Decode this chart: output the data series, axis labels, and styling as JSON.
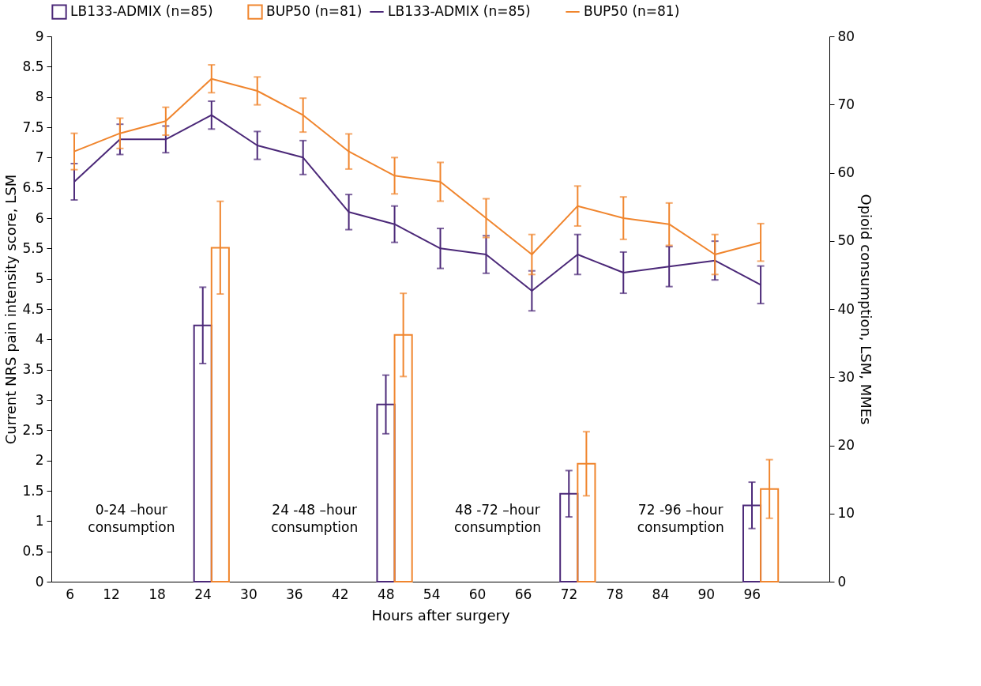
{
  "chart_data": {
    "type": "line",
    "categories": [
      "6",
      "12",
      "18",
      "24",
      "30",
      "36",
      "42",
      "48",
      "54",
      "60",
      "66",
      "72",
      "78",
      "84",
      "90",
      "96",
      null
    ],
    "series": [
      {
        "name": "LB133-ADMIX (n=85)",
        "type": "bar",
        "axis": "y2",
        "color": "#4b2878",
        "values": [
          null,
          null,
          null,
          37.6,
          null,
          null,
          null,
          26.0,
          null,
          null,
          null,
          12.9,
          null,
          null,
          null,
          11.2,
          null
        ],
        "errors": [
          null,
          null,
          null,
          5.6,
          null,
          null,
          null,
          4.3,
          null,
          null,
          null,
          3.4,
          null,
          null,
          null,
          3.4,
          null
        ]
      },
      {
        "name": "BUP50 (n=81)",
        "type": "bar",
        "axis": "y2",
        "color": "#f0852d",
        "values": [
          null,
          null,
          null,
          49.0,
          null,
          null,
          null,
          36.2,
          null,
          null,
          null,
          17.3,
          null,
          null,
          null,
          13.6,
          null
        ],
        "errors": [
          null,
          null,
          null,
          6.8,
          null,
          null,
          null,
          6.1,
          null,
          null,
          null,
          4.7,
          null,
          null,
          null,
          4.3,
          null
        ]
      },
      {
        "name": "LB133-ADMIX (n=85)",
        "color": "#4b2878",
        "values": [
          6.6,
          7.3,
          7.3,
          7.7,
          7.2,
          7.0,
          6.1,
          5.9,
          5.5,
          5.4,
          4.8,
          5.4,
          5.1,
          5.2,
          5.3,
          4.9,
          null
        ],
        "errors": [
          0.3,
          0.25,
          0.22,
          0.23,
          0.23,
          0.28,
          0.29,
          0.3,
          0.33,
          0.31,
          0.33,
          0.33,
          0.34,
          0.33,
          0.32,
          0.31,
          null
        ]
      },
      {
        "name": "BUP50 (n=81)",
        "color": "#f0852d",
        "values": [
          7.1,
          7.4,
          7.6,
          8.3,
          8.1,
          7.7,
          7.1,
          6.7,
          6.6,
          6.0,
          5.4,
          6.2,
          6.0,
          5.9,
          5.4,
          5.6,
          null
        ],
        "errors": [
          0.3,
          0.25,
          0.23,
          0.23,
          0.23,
          0.28,
          0.29,
          0.3,
          0.32,
          0.32,
          0.33,
          0.33,
          0.35,
          0.35,
          0.33,
          0.31,
          null
        ]
      }
    ],
    "xlabel": "Hours after surgery",
    "ylabel": "Current NRS pain intensity score, LSM",
    "y2label": "Opioid consumption, LSM, MMEs",
    "ylim": [
      0,
      9
    ],
    "yticks": [
      0,
      0.5,
      1,
      1.5,
      2,
      2.5,
      3,
      3.5,
      4,
      4.5,
      5,
      5.5,
      6,
      6.5,
      7,
      7.5,
      8,
      8.5,
      9
    ],
    "y2lim": [
      0,
      80
    ],
    "y2ticks": [
      0,
      10,
      20,
      30,
      40,
      50,
      60,
      70,
      80
    ],
    "annotations": [
      "0-24 –hour\nconsumption",
      "24 -48 –hour\nconsumption",
      "48 -72 –hour\nconsumption",
      "72 -96 –hour\nconsumption"
    ],
    "legend": "top",
    "grid": false
  }
}
